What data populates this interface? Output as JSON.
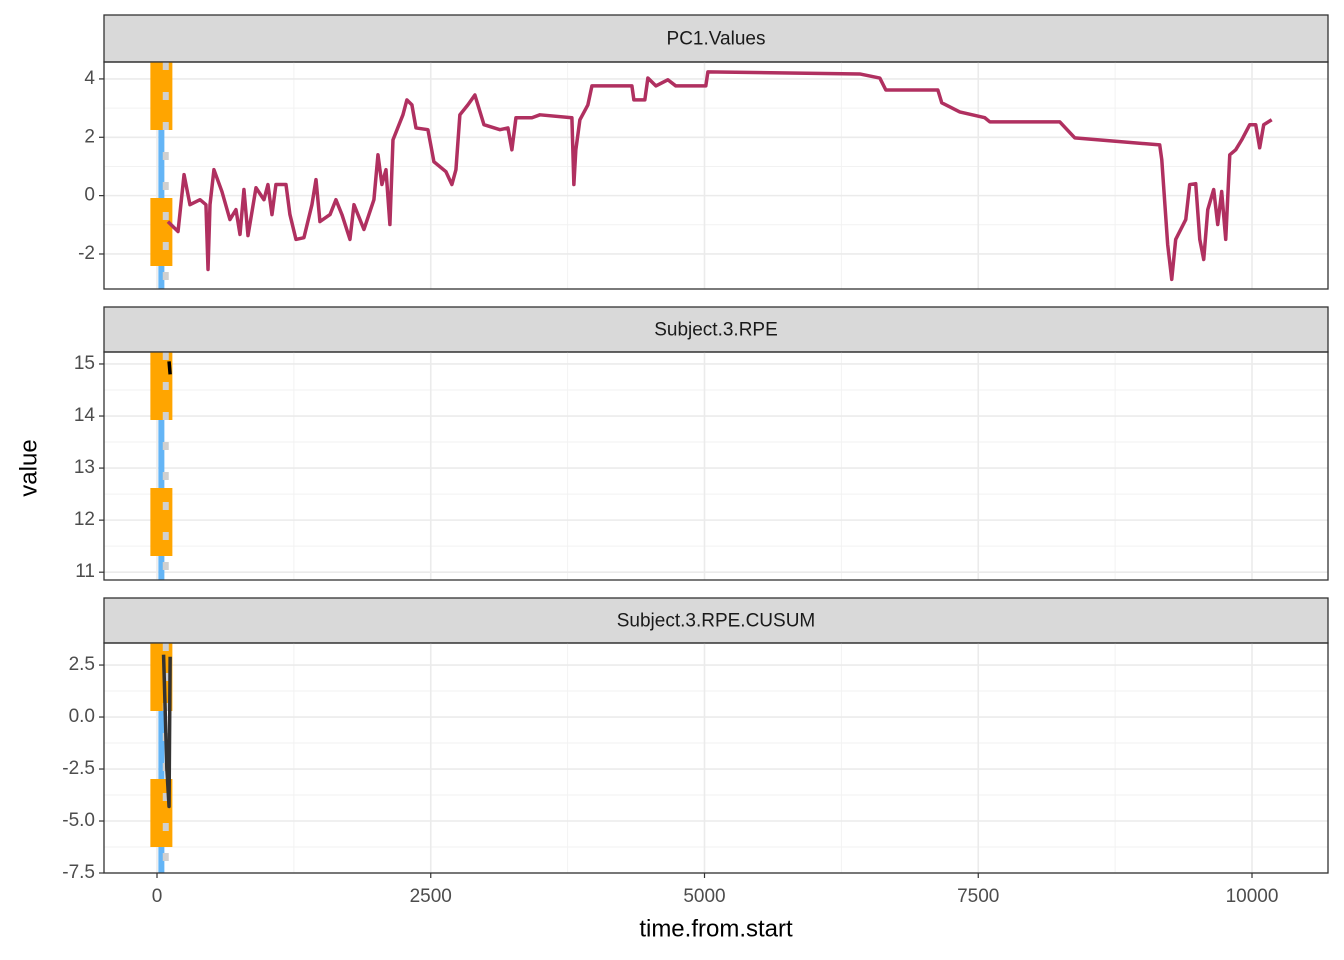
{
  "xlabel": "time.from.start",
  "ylabel": "value",
  "xlim": [
    -484,
    10694
  ],
  "xticks": [
    0,
    2500,
    5000,
    7500,
    10000
  ],
  "grid": true,
  "chart_data": [
    {
      "type": "line",
      "title": "PC1.Values",
      "ylim": [
        -3.2,
        4.58
      ],
      "yticks": [
        -2,
        0,
        2,
        4
      ],
      "vlines": [
        {
          "x": 40,
          "color": "#64b5f6",
          "dash": "solid"
        },
        {
          "x": 40,
          "color": "#ffa500",
          "dash": "long"
        },
        {
          "x": 80,
          "color": "#d0d0d0",
          "dash": "short"
        }
      ],
      "x": [
        100,
        192,
        247,
        301,
        393,
        447,
        466,
        484,
        520,
        593,
        666,
        721,
        758,
        794,
        831,
        904,
        977,
        1013,
        1050,
        1086,
        1178,
        1214,
        1269,
        1342,
        1415,
        1452,
        1488,
        1580,
        1634,
        1689,
        1762,
        1799,
        1890,
        1981,
        2018,
        2054,
        2091,
        2127,
        2155,
        2246,
        2282,
        2328,
        2365,
        2474,
        2529,
        2639,
        2693,
        2730,
        2766,
        2839,
        2903,
        2986,
        3132,
        3205,
        3241,
        3278,
        3424,
        3497,
        3789,
        3807,
        3825,
        3862,
        3935,
        3972,
        4337,
        4355,
        4455,
        4483,
        4556,
        4665,
        4738,
        5012,
        5031,
        6418,
        6601,
        6656,
        7131,
        7167,
        7331,
        7560,
        7605,
        8244,
        8381,
        9157,
        9176,
        9230,
        9267,
        9303,
        9395,
        9431,
        9486,
        9523,
        9559,
        9596,
        9650,
        9687,
        9723,
        9760,
        9797,
        9851,
        9906,
        9979,
        10034,
        10070,
        10107,
        10180
      ],
      "series": [
        {
          "color": "#b03060",
          "values": [
            -0.89,
            -1.23,
            0.72,
            -0.31,
            -0.14,
            -0.31,
            -2.53,
            -0.31,
            0.89,
            0.14,
            -0.82,
            -0.48,
            -1.33,
            0.21,
            -1.37,
            0.27,
            -0.14,
            0.38,
            -0.65,
            0.38,
            0.38,
            -0.65,
            -1.5,
            -1.44,
            -0.31,
            0.55,
            -0.89,
            -0.65,
            -0.14,
            -0.65,
            -1.5,
            -0.31,
            -1.16,
            -0.14,
            1.4,
            0.38,
            0.89,
            -0.99,
            1.91,
            2.77,
            3.28,
            3.11,
            2.32,
            2.26,
            1.16,
            0.82,
            0.38,
            0.89,
            2.77,
            3.11,
            3.45,
            2.43,
            2.26,
            2.32,
            1.57,
            2.67,
            2.67,
            2.77,
            2.67,
            0.38,
            1.57,
            2.6,
            3.11,
            3.76,
            3.76,
            3.28,
            3.28,
            4.03,
            3.76,
            3.97,
            3.76,
            3.76,
            4.24,
            4.17,
            4.03,
            3.62,
            3.62,
            3.18,
            2.87,
            2.67,
            2.53,
            2.53,
            1.98,
            1.74,
            1.23,
            -1.68,
            -2.87,
            -1.5,
            -0.82,
            0.38,
            0.41,
            -1.5,
            -2.19,
            -0.48,
            0.21,
            -0.99,
            0.14,
            -1.5,
            1.4,
            1.57,
            1.91,
            2.43,
            2.43,
            1.64,
            2.43,
            2.6
          ]
        }
      ]
    },
    {
      "type": "line",
      "title": "Subject.3.RPE",
      "ylim": [
        10.85,
        15.23
      ],
      "yticks": [
        11,
        12,
        13,
        14,
        15
      ],
      "vlines": [
        {
          "x": 40,
          "color": "#64b5f6",
          "dash": "solid"
        },
        {
          "x": 40,
          "color": "#ffa500",
          "dash": "long"
        },
        {
          "x": 80,
          "color": "#d0d0d0",
          "dash": "short"
        }
      ],
      "x": [
        110,
        120
      ],
      "series": [
        {
          "color": "#000000",
          "values": [
            15.05,
            14.8
          ]
        }
      ]
    },
    {
      "type": "line",
      "title": "Subject.3.RPE.CUSUM",
      "ylim": [
        -7.5,
        3.56
      ],
      "yticks": [
        -7.5,
        {
          "value": -5,
          "label": "-5.0"
        },
        -2.5,
        {
          "value": 0,
          "label": "0.0"
        },
        2.5
      ],
      "vlines": [
        {
          "x": 40,
          "color": "#64b5f6",
          "dash": "solid"
        },
        {
          "x": 40,
          "color": "#ffa500",
          "dash": "long"
        },
        {
          "x": 80,
          "color": "#d0d0d0",
          "dash": "short"
        }
      ],
      "x": [
        60,
        90,
        110,
        120
      ],
      "series": [
        {
          "color": "#333333",
          "values": [
            3.0,
            -2.5,
            -4.3,
            2.9
          ]
        }
      ]
    }
  ]
}
